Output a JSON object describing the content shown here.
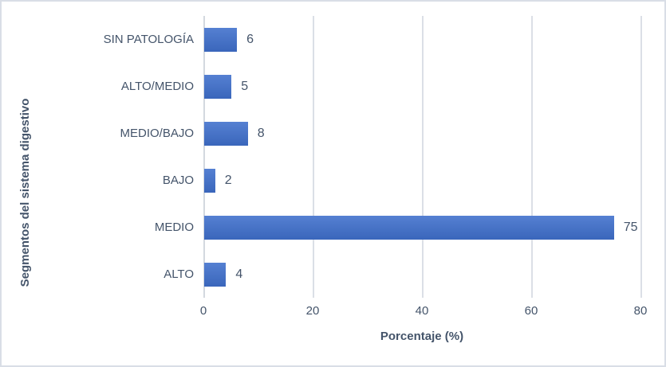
{
  "chart_data": {
    "type": "bar",
    "orientation": "horizontal",
    "categories": [
      "SIN PATOLOGÍA",
      "ALTO/MEDIO",
      "MEDIO/BAJO",
      "BAJO",
      "MEDIO",
      "ALTO"
    ],
    "values": [
      6,
      5,
      8,
      2,
      75,
      4
    ],
    "data_labels": [
      6,
      5,
      8,
      2,
      75,
      4
    ],
    "title": "",
    "xlabel": "Porcentaje (%)",
    "ylabel": "Segmentos del sistema digestivo",
    "xlim": [
      0,
      80
    ],
    "xticks": [
      0,
      20,
      40,
      60,
      80
    ],
    "grid": true,
    "legend": "none"
  },
  "colors": {
    "bar_gradient_top": "#5580d2",
    "bar_gradient_bottom": "#3a66bb",
    "gridline": "#dbdfe6",
    "axis_line": "#d3d8df",
    "text": "#44546a",
    "frame_border": "#d9dee6",
    "background": "#ffffff"
  }
}
